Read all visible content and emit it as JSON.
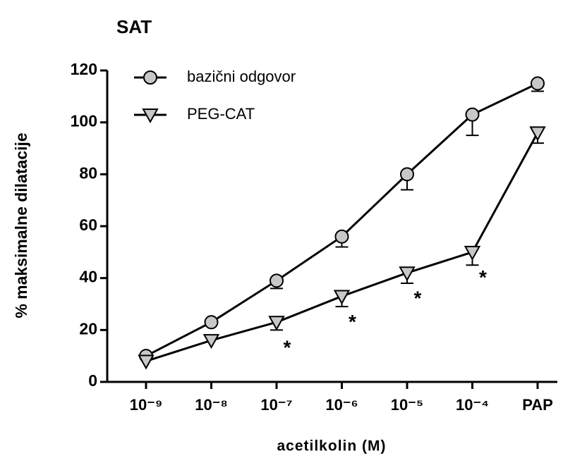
{
  "chart_data": {
    "type": "line",
    "title": "SAT",
    "xlabel": "acetilkolin (M)",
    "ylabel": "% maksimalne dilatacije",
    "categories": [
      "10⁻⁹",
      "10⁻⁸",
      "10⁻⁷",
      "10⁻⁶",
      "10⁻⁵",
      "10⁻⁴",
      "PAP"
    ],
    "series": [
      {
        "name": "bazični odgovor",
        "color": "#000000",
        "marker": "circle",
        "values": [
          10,
          23,
          39,
          56,
          80,
          103,
          115
        ],
        "errors": [
          0,
          0,
          3,
          4,
          6,
          8,
          3
        ]
      },
      {
        "name": "PEG-CAT",
        "color": "#000000",
        "marker": "triangle-down",
        "values": [
          8,
          16,
          23,
          33,
          42,
          50,
          96
        ],
        "errors": [
          0,
          0,
          3,
          4,
          4,
          5,
          4
        ]
      }
    ],
    "annotations": [
      "*",
      "*",
      "*",
      "*"
    ],
    "ylim": [
      0,
      120
    ],
    "yticks": [
      0,
      20,
      40,
      60,
      80,
      100,
      120
    ],
    "grid": false,
    "legend": "upper left"
  }
}
